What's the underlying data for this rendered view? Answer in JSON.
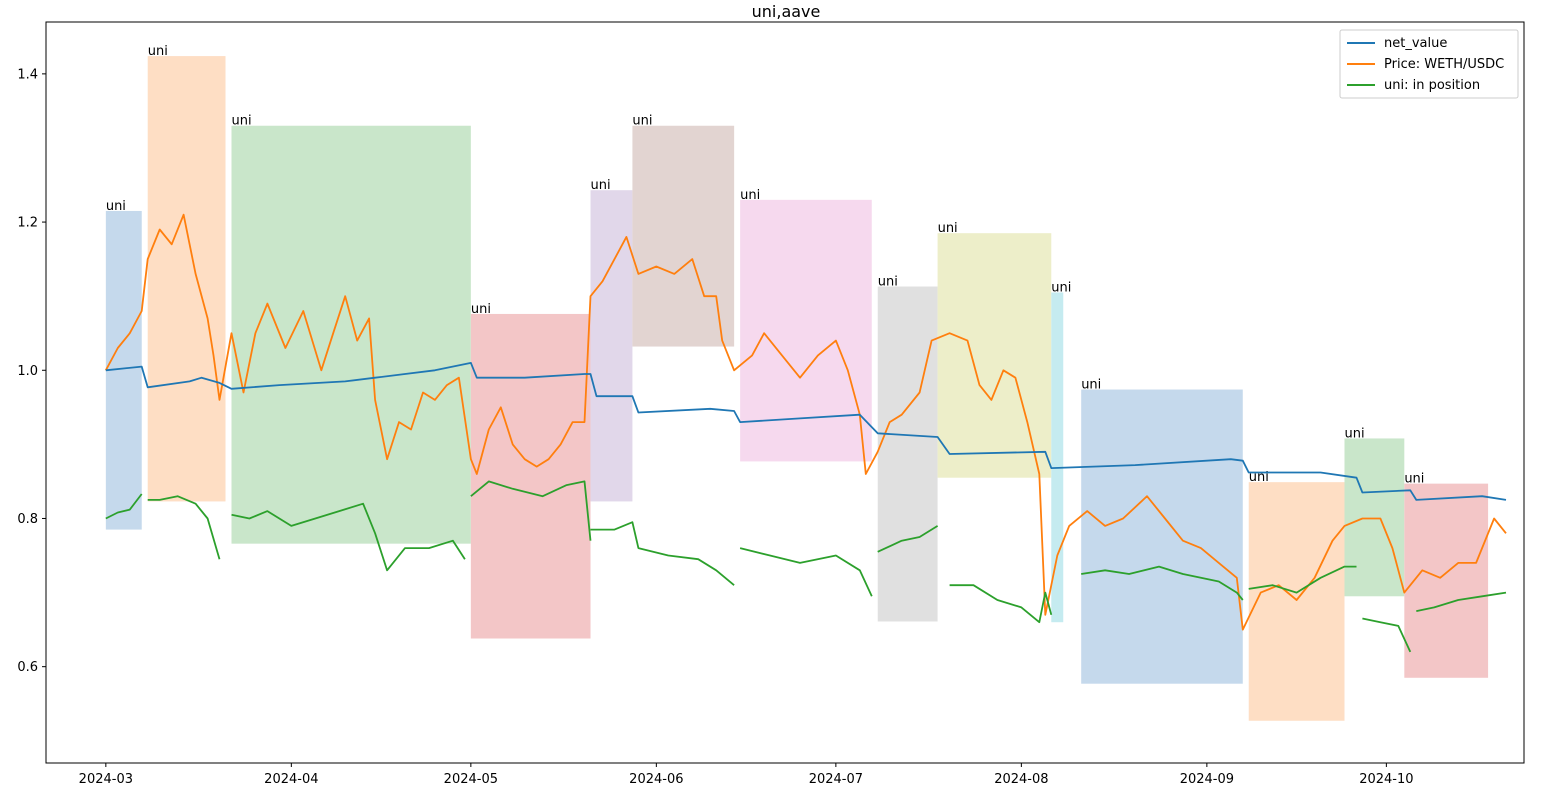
{
  "chart_data": {
    "type": "line",
    "title": "uni,aave",
    "xlabel": "",
    "ylabel": "",
    "x_range": [
      "2024-02-20",
      "2024-10-24"
    ],
    "ylim": [
      0.47,
      1.47
    ],
    "x_ticks": [
      "2024-03",
      "2024-04",
      "2024-05",
      "2024-06",
      "2024-07",
      "2024-08",
      "2024-09",
      "2024-10"
    ],
    "y_ticks": [
      "0.6",
      "0.8",
      "1.0",
      "1.2",
      "1.4"
    ],
    "legend_position": "top-right",
    "grid": false,
    "series": [
      {
        "name": "net_value",
        "color": "#1f77b4",
        "points": [
          [
            "2024-03-01",
            1.0
          ],
          [
            "2024-03-07",
            1.005
          ],
          [
            "2024-03-08",
            0.977
          ],
          [
            "2024-03-15",
            0.985
          ],
          [
            "2024-03-17",
            0.99
          ],
          [
            "2024-03-20",
            0.983
          ],
          [
            "2024-03-22",
            0.975
          ],
          [
            "2024-03-30",
            0.98
          ],
          [
            "2024-04-10",
            0.985
          ],
          [
            "2024-04-15",
            0.99
          ],
          [
            "2024-04-20",
            0.995
          ],
          [
            "2024-04-25",
            1.0
          ],
          [
            "2024-05-01",
            1.01
          ],
          [
            "2024-05-02",
            0.99
          ],
          [
            "2024-05-10",
            0.99
          ],
          [
            "2024-05-20",
            0.995
          ],
          [
            "2024-05-21",
            0.995
          ],
          [
            "2024-05-22",
            0.965
          ],
          [
            "2024-05-28",
            0.965
          ],
          [
            "2024-05-29",
            0.943
          ],
          [
            "2024-06-10",
            0.948
          ],
          [
            "2024-06-14",
            0.945
          ],
          [
            "2024-06-15",
            0.93
          ],
          [
            "2024-06-25",
            0.935
          ],
          [
            "2024-07-05",
            0.94
          ],
          [
            "2024-07-08",
            0.915
          ],
          [
            "2024-07-18",
            0.91
          ],
          [
            "2024-07-20",
            0.887
          ],
          [
            "2024-08-05",
            0.89
          ],
          [
            "2024-08-06",
            0.868
          ],
          [
            "2024-08-20",
            0.872
          ],
          [
            "2024-09-05",
            0.88
          ],
          [
            "2024-09-07",
            0.878
          ],
          [
            "2024-09-08",
            0.862
          ],
          [
            "2024-09-20",
            0.862
          ],
          [
            "2024-09-26",
            0.855
          ],
          [
            "2024-09-27",
            0.835
          ],
          [
            "2024-10-05",
            0.838
          ],
          [
            "2024-10-06",
            0.825
          ],
          [
            "2024-10-17",
            0.83
          ],
          [
            "2024-10-21",
            0.825
          ]
        ]
      },
      {
        "name": "Price: WETH/USDC",
        "color": "#ff7f0e",
        "points": [
          [
            "2024-03-01",
            1.0
          ],
          [
            "2024-03-03",
            1.03
          ],
          [
            "2024-03-05",
            1.05
          ],
          [
            "2024-03-07",
            1.08
          ],
          [
            "2024-03-08",
            1.15
          ],
          [
            "2024-03-10",
            1.19
          ],
          [
            "2024-03-12",
            1.17
          ],
          [
            "2024-03-14",
            1.21
          ],
          [
            "2024-03-16",
            1.13
          ],
          [
            "2024-03-18",
            1.07
          ],
          [
            "2024-03-19",
            1.02
          ],
          [
            "2024-03-20",
            0.96
          ],
          [
            "2024-03-22",
            1.05
          ],
          [
            "2024-03-24",
            0.97
          ],
          [
            "2024-03-26",
            1.05
          ],
          [
            "2024-03-28",
            1.09
          ],
          [
            "2024-03-31",
            1.03
          ],
          [
            "2024-04-03",
            1.08
          ],
          [
            "2024-04-06",
            1.0
          ],
          [
            "2024-04-08",
            1.05
          ],
          [
            "2024-04-10",
            1.1
          ],
          [
            "2024-04-12",
            1.04
          ],
          [
            "2024-04-14",
            1.07
          ],
          [
            "2024-04-15",
            0.96
          ],
          [
            "2024-04-17",
            0.88
          ],
          [
            "2024-04-19",
            0.93
          ],
          [
            "2024-04-21",
            0.92
          ],
          [
            "2024-04-23",
            0.97
          ],
          [
            "2024-04-25",
            0.96
          ],
          [
            "2024-04-27",
            0.98
          ],
          [
            "2024-04-29",
            0.99
          ],
          [
            "2024-05-01",
            0.88
          ],
          [
            "2024-05-02",
            0.86
          ],
          [
            "2024-05-04",
            0.92
          ],
          [
            "2024-05-06",
            0.95
          ],
          [
            "2024-05-08",
            0.9
          ],
          [
            "2024-05-10",
            0.88
          ],
          [
            "2024-05-12",
            0.87
          ],
          [
            "2024-05-14",
            0.88
          ],
          [
            "2024-05-16",
            0.9
          ],
          [
            "2024-05-18",
            0.93
          ],
          [
            "2024-05-20",
            0.93
          ],
          [
            "2024-05-21",
            1.1
          ],
          [
            "2024-05-23",
            1.12
          ],
          [
            "2024-05-25",
            1.15
          ],
          [
            "2024-05-27",
            1.18
          ],
          [
            "2024-05-29",
            1.13
          ],
          [
            "2024-06-01",
            1.14
          ],
          [
            "2024-06-04",
            1.13
          ],
          [
            "2024-06-07",
            1.15
          ],
          [
            "2024-06-09",
            1.1
          ],
          [
            "2024-06-11",
            1.1
          ],
          [
            "2024-06-12",
            1.04
          ],
          [
            "2024-06-14",
            1.0
          ],
          [
            "2024-06-17",
            1.02
          ],
          [
            "2024-06-19",
            1.05
          ],
          [
            "2024-06-22",
            1.02
          ],
          [
            "2024-06-25",
            0.99
          ],
          [
            "2024-06-28",
            1.02
          ],
          [
            "2024-07-01",
            1.04
          ],
          [
            "2024-07-03",
            1.0
          ],
          [
            "2024-07-05",
            0.94
          ],
          [
            "2024-07-06",
            0.86
          ],
          [
            "2024-07-08",
            0.89
          ],
          [
            "2024-07-10",
            0.93
          ],
          [
            "2024-07-12",
            0.94
          ],
          [
            "2024-07-15",
            0.97
          ],
          [
            "2024-07-17",
            1.04
          ],
          [
            "2024-07-20",
            1.05
          ],
          [
            "2024-07-23",
            1.04
          ],
          [
            "2024-07-25",
            0.98
          ],
          [
            "2024-07-27",
            0.96
          ],
          [
            "2024-07-29",
            1.0
          ],
          [
            "2024-07-31",
            0.99
          ],
          [
            "2024-08-02",
            0.93
          ],
          [
            "2024-08-04",
            0.86
          ],
          [
            "2024-08-05",
            0.67
          ],
          [
            "2024-08-07",
            0.75
          ],
          [
            "2024-08-09",
            0.79
          ],
          [
            "2024-08-12",
            0.81
          ],
          [
            "2024-08-15",
            0.79
          ],
          [
            "2024-08-18",
            0.8
          ],
          [
            "2024-08-22",
            0.83
          ],
          [
            "2024-08-25",
            0.8
          ],
          [
            "2024-08-28",
            0.77
          ],
          [
            "2024-08-31",
            0.76
          ],
          [
            "2024-09-03",
            0.74
          ],
          [
            "2024-09-06",
            0.72
          ],
          [
            "2024-09-07",
            0.65
          ],
          [
            "2024-09-10",
            0.7
          ],
          [
            "2024-09-13",
            0.71
          ],
          [
            "2024-09-16",
            0.69
          ],
          [
            "2024-09-19",
            0.72
          ],
          [
            "2024-09-22",
            0.77
          ],
          [
            "2024-09-24",
            0.79
          ],
          [
            "2024-09-27",
            0.8
          ],
          [
            "2024-09-30",
            0.8
          ],
          [
            "2024-10-02",
            0.76
          ],
          [
            "2024-10-04",
            0.7
          ],
          [
            "2024-10-07",
            0.73
          ],
          [
            "2024-10-10",
            0.72
          ],
          [
            "2024-10-13",
            0.74
          ],
          [
            "2024-10-16",
            0.74
          ],
          [
            "2024-10-19",
            0.8
          ],
          [
            "2024-10-21",
            0.78
          ]
        ]
      },
      {
        "name": "uni: in position",
        "color": "#2ca02c",
        "segments": [
          [
            [
              "2024-03-01",
              0.8
            ],
            [
              "2024-03-03",
              0.808
            ],
            [
              "2024-03-05",
              0.812
            ],
            [
              "2024-03-07",
              0.833
            ]
          ],
          [
            [
              "2024-03-08",
              0.825
            ],
            [
              "2024-03-10",
              0.825
            ],
            [
              "2024-03-13",
              0.83
            ],
            [
              "2024-03-16",
              0.82
            ],
            [
              "2024-03-18",
              0.8
            ],
            [
              "2024-03-20",
              0.745
            ]
          ],
          [
            [
              "2024-03-22",
              0.805
            ],
            [
              "2024-03-25",
              0.8
            ],
            [
              "2024-03-28",
              0.81
            ],
            [
              "2024-04-01",
              0.79
            ],
            [
              "2024-04-05",
              0.8
            ],
            [
              "2024-04-09",
              0.81
            ],
            [
              "2024-04-13",
              0.82
            ],
            [
              "2024-04-15",
              0.78
            ],
            [
              "2024-04-17",
              0.73
            ],
            [
              "2024-04-20",
              0.76
            ],
            [
              "2024-04-24",
              0.76
            ],
            [
              "2024-04-28",
              0.77
            ],
            [
              "2024-04-30",
              0.745
            ]
          ],
          [
            [
              "2024-05-01",
              0.83
            ],
            [
              "2024-05-04",
              0.85
            ],
            [
              "2024-05-08",
              0.84
            ],
            [
              "2024-05-13",
              0.83
            ],
            [
              "2024-05-17",
              0.845
            ],
            [
              "2024-05-20",
              0.85
            ],
            [
              "2024-05-21",
              0.77
            ]
          ],
          [
            [
              "2024-05-21",
              0.785
            ],
            [
              "2024-05-25",
              0.785
            ],
            [
              "2024-05-28",
              0.795
            ],
            [
              "2024-05-29",
              0.76
            ],
            [
              "2024-06-03",
              0.75
            ],
            [
              "2024-06-08",
              0.745
            ],
            [
              "2024-06-11",
              0.73
            ],
            [
              "2024-06-14",
              0.71
            ]
          ],
          [
            [
              "2024-06-15",
              0.76
            ],
            [
              "2024-06-20",
              0.75
            ],
            [
              "2024-06-25",
              0.74
            ],
            [
              "2024-07-01",
              0.75
            ],
            [
              "2024-07-05",
              0.73
            ],
            [
              "2024-07-07",
              0.695
            ]
          ],
          [
            [
              "2024-07-08",
              0.755
            ],
            [
              "2024-07-12",
              0.77
            ],
            [
              "2024-07-15",
              0.775
            ],
            [
              "2024-07-18",
              0.79
            ]
          ],
          [
            [
              "2024-07-20",
              0.71
            ],
            [
              "2024-07-24",
              0.71
            ],
            [
              "2024-07-28",
              0.69
            ],
            [
              "2024-08-01",
              0.68
            ],
            [
              "2024-08-04",
              0.66
            ],
            [
              "2024-08-05",
              0.7
            ],
            [
              "2024-08-06",
              0.67
            ]
          ],
          [
            [
              "2024-08-11",
              0.725
            ],
            [
              "2024-08-15",
              0.73
            ],
            [
              "2024-08-19",
              0.725
            ],
            [
              "2024-08-24",
              0.735
            ],
            [
              "2024-08-28",
              0.725
            ],
            [
              "2024-08-31",
              0.72
            ],
            [
              "2024-09-03",
              0.715
            ],
            [
              "2024-09-06",
              0.7
            ],
            [
              "2024-09-07",
              0.69
            ]
          ],
          [
            [
              "2024-09-08",
              0.705
            ],
            [
              "2024-09-12",
              0.71
            ],
            [
              "2024-09-16",
              0.7
            ],
            [
              "2024-09-20",
              0.72
            ],
            [
              "2024-09-24",
              0.735
            ],
            [
              "2024-09-26",
              0.735
            ]
          ],
          [
            [
              "2024-09-27",
              0.665
            ],
            [
              "2024-09-30",
              0.66
            ],
            [
              "2024-10-03",
              0.655
            ],
            [
              "2024-10-05",
              0.62
            ]
          ],
          [
            [
              "2024-10-06",
              0.675
            ],
            [
              "2024-10-09",
              0.68
            ],
            [
              "2024-10-13",
              0.69
            ],
            [
              "2024-10-17",
              0.695
            ],
            [
              "2024-10-21",
              0.7
            ]
          ]
        ]
      }
    ],
    "bands": [
      {
        "label": "uni",
        "x0": "2024-03-01",
        "x1": "2024-03-07",
        "y0": 0.785,
        "y1": 1.215,
        "color": "#c5d9ec"
      },
      {
        "label": "uni",
        "x0": "2024-03-08",
        "x1": "2024-03-21",
        "y0": 0.823,
        "y1": 1.424,
        "color": "#fedec4"
      },
      {
        "label": "uni",
        "x0": "2024-03-22",
        "x1": "2024-05-01",
        "y0": 0.766,
        "y1": 1.33,
        "color": "#c9e6ca"
      },
      {
        "label": "uni",
        "x0": "2024-05-01",
        "x1": "2024-05-21",
        "y0": 0.638,
        "y1": 1.076,
        "color": "#f3c6c7"
      },
      {
        "label": "uni",
        "x0": "2024-05-21",
        "x1": "2024-05-28",
        "y0": 0.823,
        "y1": 1.243,
        "color": "#e1d7ea"
      },
      {
        "label": "uni",
        "x0": "2024-05-28",
        "x1": "2024-06-14",
        "y0": 1.032,
        "y1": 1.33,
        "color": "#e2d4d1"
      },
      {
        "label": "uni",
        "x0": "2024-06-15",
        "x1": "2024-07-07",
        "y0": 0.877,
        "y1": 1.23,
        "color": "#f6d9ee"
      },
      {
        "label": "uni",
        "x0": "2024-07-08",
        "x1": "2024-07-18",
        "y0": 0.661,
        "y1": 1.113,
        "color": "#e0e0e0"
      },
      {
        "label": "uni",
        "x0": "2024-07-18",
        "x1": "2024-08-06",
        "y0": 0.855,
        "y1": 1.185,
        "color": "#edeec9"
      },
      {
        "label": "uni",
        "x0": "2024-08-06",
        "x1": "2024-08-08",
        "y0": 0.66,
        "y1": 1.105,
        "color": "#c5ebf0"
      },
      {
        "label": "uni",
        "x0": "2024-08-11",
        "x1": "2024-09-07",
        "y0": 0.577,
        "y1": 0.974,
        "color": "#c5d9ec"
      },
      {
        "label": "uni",
        "x0": "2024-09-08",
        "x1": "2024-09-24",
        "y0": 0.527,
        "y1": 0.849,
        "color": "#fedec4"
      },
      {
        "label": "uni",
        "x0": "2024-09-24",
        "x1": "2024-10-04",
        "y0": 0.695,
        "y1": 0.908,
        "color": "#c9e6ca"
      },
      {
        "label": "uni",
        "x0": "2024-10-04",
        "x1": "2024-10-18",
        "y0": 0.585,
        "y1": 0.847,
        "color": "#f3c6c7"
      }
    ]
  }
}
